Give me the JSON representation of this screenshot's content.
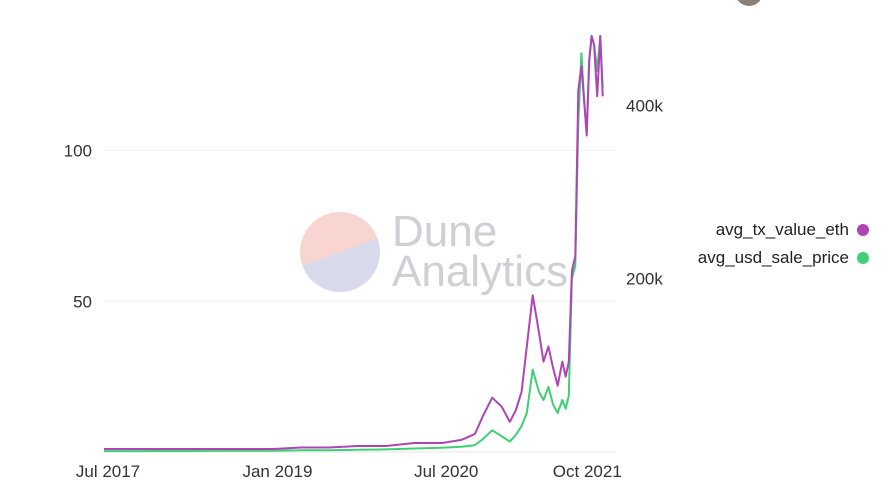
{
  "watermark": {
    "line1": "Dune",
    "line2": "Analytics"
  },
  "chart_data": {
    "type": "line",
    "x_tick_labels": [
      "Jul 2017",
      "Jan 2019",
      "Jul 2020",
      "Oct 2021"
    ],
    "x_tick_dates": [
      "2017-07-01",
      "2019-01-01",
      "2020-07-01",
      "2021-10-01"
    ],
    "xlim": [
      "2017-07-01",
      "2022-01-15"
    ],
    "y_left": {
      "ticks": [
        50,
        100
      ],
      "tick_labels": [
        "50",
        "100"
      ],
      "ylim": [
        0,
        138
      ]
    },
    "y_right": {
      "ticks": [
        200000,
        400000
      ],
      "tick_labels": [
        "200k",
        "400k"
      ],
      "ylim": [
        0,
        480000
      ]
    },
    "grid": "horizontal",
    "legend_position": "right",
    "series": [
      {
        "name": "avg_tx_value_eth",
        "color": "#b044b6",
        "axis": "left",
        "x": [
          "2017-07-01",
          "2017-10-01",
          "2018-01-01",
          "2018-04-01",
          "2018-07-01",
          "2018-10-01",
          "2019-01-01",
          "2019-04-01",
          "2019-07-01",
          "2019-10-01",
          "2020-01-01",
          "2020-04-01",
          "2020-07-01",
          "2020-09-01",
          "2020-10-15",
          "2020-11-10",
          "2020-12-10",
          "2021-01-10",
          "2021-02-05",
          "2021-02-25",
          "2021-03-15",
          "2021-04-01",
          "2021-04-20",
          "2021-05-10",
          "2021-05-25",
          "2021-06-10",
          "2021-06-25",
          "2021-07-10",
          "2021-07-25",
          "2021-08-05",
          "2021-08-15",
          "2021-08-25",
          "2021-09-05",
          "2021-09-15",
          "2021-09-25",
          "2021-10-05",
          "2021-10-12",
          "2021-10-20",
          "2021-10-28",
          "2021-11-05",
          "2021-11-15",
          "2021-11-25",
          "2021-12-03"
        ],
        "values": [
          1,
          1,
          1,
          1,
          1,
          1,
          1,
          1.5,
          1.5,
          2,
          2,
          3,
          3,
          4,
          6,
          12,
          18,
          15,
          10,
          14,
          20,
          35,
          52,
          40,
          30,
          35,
          28,
          22,
          30,
          25,
          30,
          60,
          65,
          120,
          128,
          115,
          105,
          130,
          138,
          135,
          118,
          138,
          118
        ]
      },
      {
        "name": "avg_usd_sale_price",
        "color": "#3fcf74",
        "axis": "right",
        "x": [
          "2017-07-01",
          "2017-10-01",
          "2018-01-01",
          "2018-04-01",
          "2018-07-01",
          "2018-10-01",
          "2019-01-01",
          "2019-04-01",
          "2019-07-01",
          "2019-10-01",
          "2020-01-01",
          "2020-04-01",
          "2020-07-01",
          "2020-09-01",
          "2020-10-15",
          "2020-11-10",
          "2020-12-10",
          "2021-01-10",
          "2021-02-05",
          "2021-02-25",
          "2021-03-15",
          "2021-04-01",
          "2021-04-20",
          "2021-05-10",
          "2021-05-25",
          "2021-06-10",
          "2021-06-25",
          "2021-07-10",
          "2021-07-25",
          "2021-08-05",
          "2021-08-15",
          "2021-08-25",
          "2021-09-05",
          "2021-09-15",
          "2021-09-25",
          "2021-10-05",
          "2021-10-12",
          "2021-10-20",
          "2021-10-28",
          "2021-11-05",
          "2021-11-15",
          "2021-11-25",
          "2021-12-03"
        ],
        "values": [
          1000,
          1000,
          1200,
          1200,
          1500,
          1500,
          1500,
          2000,
          2000,
          2500,
          3000,
          4000,
          5000,
          6000,
          8000,
          15000,
          25000,
          18000,
          12000,
          20000,
          30000,
          45000,
          95000,
          70000,
          60000,
          75000,
          55000,
          45000,
          60000,
          50000,
          65000,
          200000,
          215000,
          380000,
          460000,
          400000,
          370000,
          450000,
          480000,
          470000,
          440000,
          480000,
          420000
        ]
      }
    ]
  }
}
